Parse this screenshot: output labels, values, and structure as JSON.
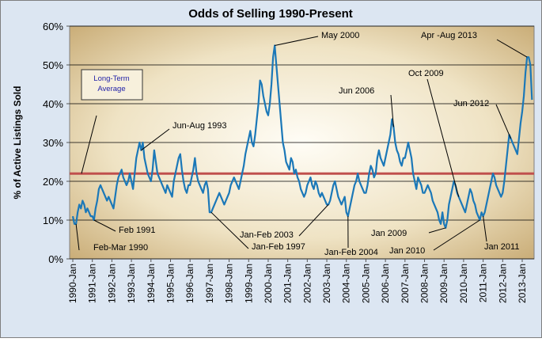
{
  "chart_data": {
    "type": "line",
    "title": "Odds of Selling 1990-Present",
    "y_label": "% of Active Listings Sold",
    "categories": [
      "1990-Jan",
      null,
      null,
      null,
      null,
      null,
      null,
      null,
      null,
      null,
      null,
      null,
      "1991-Jan",
      null,
      null,
      null,
      null,
      null,
      null,
      null,
      null,
      null,
      null,
      null,
      "1992-Jan",
      null,
      null,
      null,
      null,
      null,
      null,
      null,
      null,
      null,
      null,
      null,
      "1993-Jan",
      null,
      null,
      null,
      null,
      null,
      null,
      null,
      null,
      null,
      null,
      null,
      "1994-Jan",
      null,
      null,
      null,
      null,
      null,
      null,
      null,
      null,
      null,
      null,
      null,
      "1995-Jan",
      null,
      null,
      null,
      null,
      null,
      null,
      null,
      null,
      null,
      null,
      null,
      "1996-Jan",
      null,
      null,
      null,
      null,
      null,
      null,
      null,
      null,
      null,
      null,
      null,
      "1997-Jan",
      null,
      null,
      null,
      null,
      null,
      null,
      null,
      null,
      null,
      null,
      null,
      "1998-Jan",
      null,
      null,
      null,
      null,
      null,
      null,
      null,
      null,
      null,
      null,
      null,
      "1999-Jan",
      null,
      null,
      null,
      null,
      null,
      null,
      null,
      null,
      null,
      null,
      null,
      "2000-Jan",
      null,
      null,
      null,
      null,
      null,
      null,
      null,
      null,
      null,
      null,
      null,
      "2001-Jan",
      null,
      null,
      null,
      null,
      null,
      null,
      null,
      null,
      null,
      null,
      null,
      "2002-Jan",
      null,
      null,
      null,
      null,
      null,
      null,
      null,
      null,
      null,
      null,
      null,
      "2003-Jan",
      null,
      null,
      null,
      null,
      null,
      null,
      null,
      null,
      null,
      null,
      null,
      "2004-Jan",
      null,
      null,
      null,
      null,
      null,
      null,
      null,
      null,
      null,
      null,
      null,
      "2005-Jan",
      null,
      null,
      null,
      null,
      null,
      null,
      null,
      null,
      null,
      null,
      null,
      "2006-Jan",
      null,
      null,
      null,
      null,
      null,
      null,
      null,
      null,
      null,
      null,
      null,
      "2007-Jan",
      null,
      null,
      null,
      null,
      null,
      null,
      null,
      null,
      null,
      null,
      null,
      "2008-Jan",
      null,
      null,
      null,
      null,
      null,
      null,
      null,
      null,
      null,
      null,
      null,
      "2009-Jan",
      null,
      null,
      null,
      null,
      null,
      null,
      null,
      null,
      null,
      null,
      null,
      "2010-Jan",
      null,
      null,
      null,
      null,
      null,
      null,
      null,
      null,
      null,
      null,
      null,
      "2011-Jan",
      null,
      null,
      null,
      null,
      null,
      null,
      null,
      null,
      null,
      null,
      null,
      "2012-Jan",
      null,
      null,
      null,
      null,
      null,
      null,
      null,
      null,
      null,
      null,
      null,
      "2013-Jan",
      null,
      null,
      null,
      null,
      null,
      null
    ],
    "series": [
      {
        "name": "Odds of Selling",
        "color": "#1b78b8",
        "values": [
          11,
          9,
          9,
          12,
          14,
          13,
          15,
          14,
          12,
          13,
          12,
          11,
          11,
          10,
          13,
          15,
          18,
          19,
          18,
          17,
          16,
          15,
          16,
          15,
          14,
          13,
          16,
          19,
          21,
          22,
          23,
          21,
          20,
          19,
          20,
          22,
          20,
          18,
          22,
          26,
          28,
          30,
          28,
          30,
          26,
          24,
          22,
          21,
          20,
          23,
          28,
          25,
          22,
          21,
          20,
          19,
          18,
          17,
          19,
          18,
          17,
          16,
          20,
          22,
          24,
          26,
          27,
          23,
          20,
          18,
          17,
          19,
          19,
          21,
          23,
          26,
          22,
          20,
          19,
          18,
          17,
          19,
          20,
          18,
          12,
          12,
          13,
          14,
          15,
          16,
          17,
          16,
          15,
          14,
          15,
          16,
          17,
          19,
          20,
          21,
          20,
          19,
          18,
          20,
          22,
          24,
          27,
          29,
          31,
          33,
          30,
          29,
          32,
          36,
          40,
          46,
          45,
          42,
          40,
          38,
          37,
          40,
          45,
          52,
          55,
          50,
          45,
          40,
          35,
          30,
          28,
          25,
          24,
          23,
          26,
          25,
          22,
          23,
          21,
          20,
          18,
          17,
          16,
          17,
          19,
          20,
          21,
          19,
          18,
          20,
          19,
          17,
          16,
          17,
          16,
          15,
          14,
          14,
          15,
          17,
          19,
          20,
          18,
          16,
          15,
          14,
          15,
          16,
          12,
          11,
          13,
          15,
          17,
          19,
          20,
          22,
          20,
          19,
          18,
          17,
          17,
          19,
          22,
          24,
          23,
          21,
          22,
          26,
          28,
          26,
          25,
          24,
          26,
          28,
          30,
          32,
          36,
          34,
          30,
          28,
          27,
          25,
          24,
          26,
          26,
          28,
          30,
          28,
          26,
          22,
          20,
          18,
          21,
          20,
          19,
          17,
          17,
          18,
          19,
          18,
          17,
          15,
          14,
          13,
          12,
          10,
          9,
          12,
          9,
          8,
          10,
          14,
          16,
          18,
          20,
          19,
          17,
          16,
          15,
          14,
          13,
          12,
          14,
          16,
          18,
          17,
          15,
          14,
          12,
          11,
          10,
          12,
          11,
          12,
          14,
          16,
          18,
          20,
          22,
          21,
          19,
          18,
          17,
          16,
          17,
          20,
          24,
          28,
          32,
          31,
          30,
          29,
          28,
          27,
          31,
          35,
          38,
          42,
          48,
          52,
          52,
          50,
          41
        ]
      }
    ],
    "reference_line": {
      "label": "Long-Term Average",
      "value": 22,
      "color": "#c0504d"
    },
    "annotations": [
      "Feb-Mar 1990",
      "Feb 1991",
      "Jun-Aug 1993",
      "Jan-Feb 1997",
      "May 2000",
      "Jan-Feb 2003",
      "Jan-Feb 2004",
      "Jun 2006",
      "Oct 2009",
      "Jan 2009",
      "Jan 2010",
      "Jun 2012",
      "Jan 2011",
      "Apr -Aug 2013"
    ],
    "ylim": [
      0,
      60
    ],
    "yticks": [
      {
        "value": 0,
        "label": "0%"
      },
      {
        "value": 10,
        "label": "10%"
      },
      {
        "value": 20,
        "label": "20%"
      },
      {
        "value": 30,
        "label": "30%"
      },
      {
        "value": 40,
        "label": "40%"
      },
      {
        "value": 50,
        "label": "50%"
      },
      {
        "value": 60,
        "label": "60%"
      }
    ],
    "grid": true
  }
}
